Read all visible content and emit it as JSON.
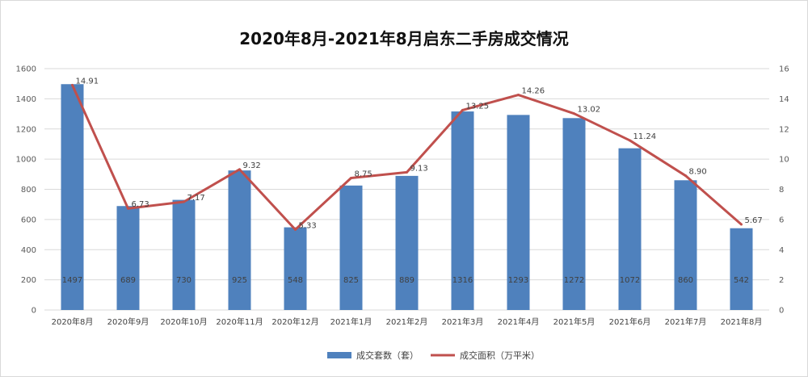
{
  "chart_data": {
    "type": "bar",
    "title": "2020年8月-2021年8月启东二手房成交情况",
    "categories": [
      "2020年8月",
      "2020年9月",
      "2020年10月",
      "2020年11月",
      "2020年12月",
      "2021年1月",
      "2021年2月",
      "2021年3月",
      "2021年4月",
      "2021年5月",
      "2021年6月",
      "2021年7月",
      "2021年8月"
    ],
    "series": [
      {
        "name": "成交套数（套）",
        "type": "bar",
        "axis": "left",
        "color": "#4f81bd",
        "values": [
          1497,
          689,
          730,
          925,
          548,
          825,
          889,
          1316,
          1293,
          1272,
          1072,
          860,
          542
        ]
      },
      {
        "name": "成交面积（万平米）",
        "type": "line",
        "axis": "right",
        "color": "#c0504d",
        "values": [
          14.91,
          6.73,
          7.17,
          9.32,
          5.33,
          8.75,
          9.13,
          13.25,
          14.26,
          13.02,
          11.24,
          8.9,
          5.67
        ],
        "labels": [
          "14.91",
          "6.73",
          "7.17",
          "9.32",
          "5.33",
          "8.75",
          "9.13",
          "13.25",
          "14.26",
          "13.02",
          "11.24",
          "8.90",
          "5.67"
        ]
      }
    ],
    "ylim_left": [
      0,
      1600
    ],
    "yticks_left": [
      "0",
      "200",
      "400",
      "600",
      "800",
      "1000",
      "1200",
      "1400",
      "1600"
    ],
    "ylim_right": [
      0,
      16
    ],
    "yticks_right": [
      "0",
      "2",
      "4",
      "6",
      "8",
      "10",
      "12",
      "14",
      "16"
    ],
    "grid": true,
    "legend": "bottom"
  }
}
